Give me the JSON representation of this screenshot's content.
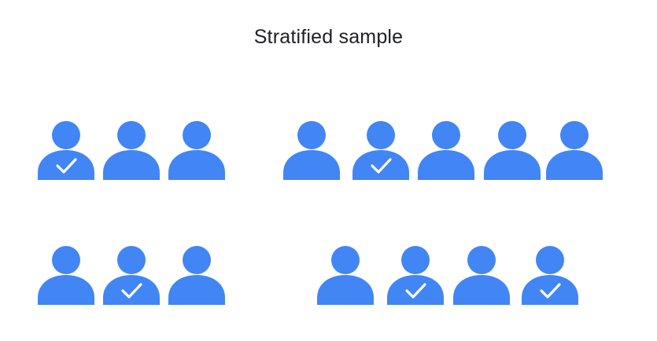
{
  "slide": {
    "title": "Stratified sample"
  },
  "colors": {
    "person": "#4285F4",
    "check": "#FFFFFF",
    "title": "#202124",
    "background": "#FFFFFF"
  },
  "icons": {
    "person": "person-icon",
    "selected_mark": "checkmark-icon"
  },
  "groups": [
    {
      "name": "group-1",
      "people": [
        {
          "selected": true
        },
        {
          "selected": false
        },
        {
          "selected": false
        }
      ]
    },
    {
      "name": "group-2",
      "people": [
        {
          "selected": false
        },
        {
          "selected": true
        },
        {
          "selected": false
        },
        {
          "selected": false
        },
        {
          "selected": false
        }
      ]
    },
    {
      "name": "group-3",
      "people": [
        {
          "selected": false
        },
        {
          "selected": true
        },
        {
          "selected": false
        }
      ]
    },
    {
      "name": "group-4",
      "people": [
        {
          "selected": false
        },
        {
          "selected": true
        },
        {
          "selected": false
        },
        {
          "selected": true
        }
      ]
    }
  ]
}
